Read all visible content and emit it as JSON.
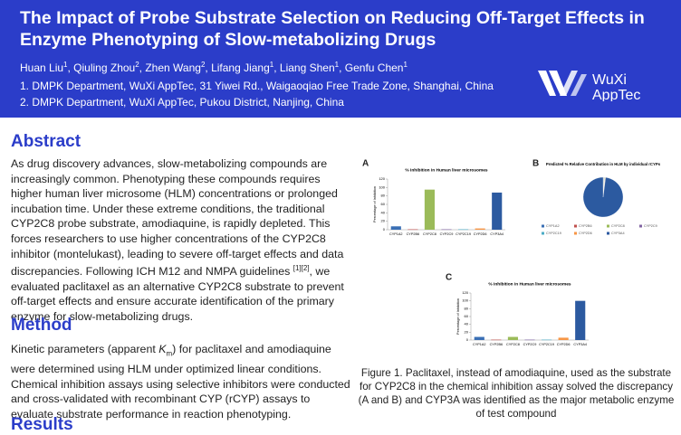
{
  "header": {
    "title": "The Impact of Probe Substrate Selection on Reducing Off-Target Effects in Enzyme Phenotyping of Slow-metabolizing Drugs",
    "authors": [
      {
        "name": "Huan Liu",
        "sup": "1"
      },
      {
        "name": "Qiuling Zhou",
        "sup": "2"
      },
      {
        "name": "Zhen Wang",
        "sup": "2"
      },
      {
        "name": "Lifang Jiang",
        "sup": "1"
      },
      {
        "name": "Liang Shen",
        "sup": "1"
      },
      {
        "name": "Genfu Chen",
        "sup": "1"
      }
    ],
    "separator": ", ",
    "affiliations": [
      "1. DMPK Department, WuXi AppTec, 31 Yiwei Rd., Waigaoqiao Free Trade Zone, Shanghai, China",
      "2. DMPK Department, WuXi AppTec, Pukou District, Nanjing, China"
    ],
    "logo": [
      "WuXi",
      "AppTec"
    ]
  },
  "abstract": {
    "heading": "Abstract",
    "text": "As drug discovery advances, slow-metabolizing compounds are increasingly common. Phenotyping these compounds requires higher human liver microsome (HLM) concentrations or prolonged incubation time. Under these extreme conditions, the traditional CYP2C8 probe substrate, amodiaquine, is rapidly depleted. This forces researchers to use higher concentrations of the CYP2C8 inhibitor (montelukast), leading to severe off-target effects and data discrepancies. Following ICH M12 and NMPA guidelines ",
    "citation": "[1][2]",
    "text_end": ", we evaluated paclitaxel as an alternative CYP2C8 substrate to prevent off-target effects and ensure accurate identification of the primary enzyme for slow-metabolizing drugs."
  },
  "method": {
    "heading": "Method",
    "text": "Kinetic parameters (apparent ",
    "symbol": "K",
    "subscript": "m",
    "text_end": ") for paclitaxel and amodiaquine were determined using HLM under optimized linear conditions. Chemical inhibition assays using selective inhibitors were conducted and cross-validated with recombinant CYP (rCYP) assays to evaluate substrate performance in reaction phenotyping."
  },
  "results": {
    "heading": "Results"
  },
  "figure": {
    "caption": "Figure 1. Paclitaxel, instead of amodiaquine, used as the substrate for CYP2C8 in the chemical inhibition assay solved the discrepancy (A and B) and CYP3A was identified as the major metabolic enzyme of test compound"
  },
  "chart_data": [
    {
      "type": "bar",
      "label": "A",
      "title": "% Inhibition in Human liver microsomes",
      "ylabel": "Percentage of Inhibition",
      "categories": [
        "CYP1A2",
        "CYP2B6",
        "CYP2C8",
        "CYP2C9",
        "CYP2C19",
        "CYP2D6",
        "CYP3A4"
      ],
      "values": [
        8,
        1,
        95,
        1,
        1,
        3,
        88
      ],
      "colors": [
        "#3a6fb5",
        "#c0504d",
        "#9bbb59",
        "#8064a2",
        "#4bacc6",
        "#f79646",
        "#2c5aa0"
      ],
      "ylim": [
        0,
        120
      ],
      "yticks": [
        0,
        20,
        40,
        60,
        80,
        100,
        120
      ]
    },
    {
      "type": "pie",
      "label": "B",
      "title": "Predicted % Relative Contribution in HLM by individual rCYPs",
      "categories": [
        "CYP1A2",
        "CYP2B6",
        "CYP2C8",
        "CYP2C9",
        "CYP2C19",
        "CYP2D6",
        "CYP3A4"
      ],
      "values": [
        0.5,
        0.2,
        0.5,
        0.2,
        0.2,
        0.4,
        98
      ],
      "colors": [
        "#3a6fb5",
        "#c0504d",
        "#9bbb59",
        "#8064a2",
        "#4bacc6",
        "#f79646",
        "#2c5aa0"
      ]
    },
    {
      "type": "bar",
      "label": "C",
      "title": "% Inhibition in Human liver microsomes",
      "ylabel": "Percentage of Inhibition",
      "categories": [
        "CYP1A2",
        "CYP2B6",
        "CYP2C8",
        "CYP2C9",
        "CYP2C19",
        "CYP2D6",
        "CYP3A4"
      ],
      "values": [
        8,
        1,
        8,
        1,
        1,
        6,
        100
      ],
      "colors": [
        "#3a6fb5",
        "#c0504d",
        "#9bbb59",
        "#8064a2",
        "#4bacc6",
        "#f79646",
        "#2c5aa0"
      ],
      "ylim": [
        0,
        120
      ],
      "yticks": [
        0,
        20,
        40,
        60,
        80,
        100,
        120
      ]
    }
  ]
}
